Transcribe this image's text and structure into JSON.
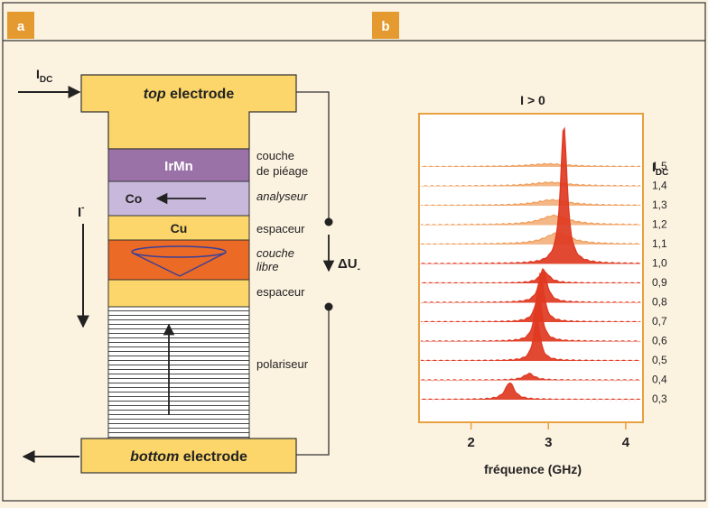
{
  "panels": {
    "a": "a",
    "b": "b"
  },
  "stack": {
    "i_dc_label": "I",
    "i_dc_sub": "DC",
    "top_electrode_em": "top",
    "top_electrode_rest": " electrode",
    "irmn": "IrMn",
    "co": "Co",
    "cu": "Cu",
    "bottom_electrode_em": "bottom",
    "bottom_electrode_rest": " electrode",
    "current_label": "I",
    "current_sup": "-",
    "voltage_label": "ΔU",
    "voltage_sub": "-"
  },
  "layer_labels": {
    "pinning_1": "couche",
    "pinning_2": "de piéage",
    "analyser": "analyseur",
    "spacer_top": "espaceur",
    "free_1": "couche",
    "free_2": "libre",
    "spacer_bottom": "espaceur",
    "polarizer": "polariseur"
  },
  "colors": {
    "electrode": "#fcd66a",
    "irmn": "#9b72a8",
    "co": "#c8b8dc",
    "free_layer": "#ea6a26",
    "panel_tag": "#e49a2e",
    "spectrum_red": "#e03a22",
    "spectrum_orange": "#f0a060"
  },
  "chart_data": {
    "type": "area",
    "title": "I > 0",
    "xlabel": "fréquence (GHz)",
    "xticks": [
      2,
      3,
      4
    ],
    "xlim": [
      1.35,
      4.2
    ],
    "legend_title": "I",
    "legend_sub": "DC",
    "series": [
      {
        "name": "0,3",
        "peak_ghz": 2.5,
        "height": 0.9,
        "width": 0.07,
        "color": "red"
      },
      {
        "name": "0,4",
        "peak_ghz": 2.75,
        "height": 0.35,
        "width": 0.08,
        "color": "red"
      },
      {
        "name": "0,5",
        "peak_ghz": 2.85,
        "height": 2.2,
        "width": 0.05,
        "color": "red"
      },
      {
        "name": "0,6",
        "peak_ghz": 2.87,
        "height": 2.8,
        "width": 0.05,
        "color": "red"
      },
      {
        "name": "0,7",
        "peak_ghz": 2.9,
        "height": 2.6,
        "width": 0.05,
        "color": "red"
      },
      {
        "name": "0,8",
        "peak_ghz": 2.93,
        "height": 1.8,
        "width": 0.06,
        "color": "red"
      },
      {
        "name": "0,9",
        "peak_ghz": 2.95,
        "height": 0.6,
        "width": 0.08,
        "color": "red"
      },
      {
        "name": "1,0",
        "peak_ghz": 3.2,
        "height": 7.3,
        "width": 0.05,
        "color": "red"
      },
      {
        "name": "1,1",
        "peak_ghz": 3.12,
        "height": 0.6,
        "width": 0.2,
        "color": "orange"
      },
      {
        "name": "1,2",
        "peak_ghz": 3.08,
        "height": 0.5,
        "width": 0.22,
        "color": "orange"
      },
      {
        "name": "1,3",
        "peak_ghz": 3.05,
        "height": 0.3,
        "width": 0.25,
        "color": "orange"
      },
      {
        "name": "1,4",
        "peak_ghz": 3.02,
        "height": 0.2,
        "width": 0.28,
        "color": "orange"
      },
      {
        "name": "1,5",
        "peak_ghz": 3.0,
        "height": 0.15,
        "width": 0.3,
        "color": "orange"
      }
    ]
  }
}
